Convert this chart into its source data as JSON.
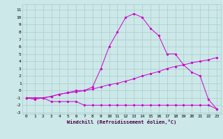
{
  "title": "",
  "xlabel": "Windchill (Refroidissement éolien,°C)",
  "bg_color": "#cce8e8",
  "grid_color": "#aacccc",
  "line_color": "#cc00cc",
  "xlim": [
    -0.5,
    23.5
  ],
  "ylim": [
    -3.2,
    11.8
  ],
  "xticks": [
    0,
    1,
    2,
    3,
    4,
    5,
    6,
    7,
    8,
    9,
    10,
    11,
    12,
    13,
    14,
    15,
    16,
    17,
    18,
    19,
    20,
    21,
    22,
    23
  ],
  "yticks": [
    -3,
    -2,
    -1,
    0,
    1,
    2,
    3,
    4,
    5,
    6,
    7,
    8,
    9,
    10,
    11
  ],
  "line1_x": [
    0,
    1,
    2,
    3,
    4,
    5,
    6,
    7,
    8,
    9,
    10,
    11,
    12,
    13,
    14,
    15,
    16,
    17,
    18,
    19,
    20,
    21,
    22,
    23
  ],
  "line1_y": [
    -1,
    -1.2,
    -1,
    -1.5,
    -1.5,
    -1.5,
    -1.5,
    -2,
    -2,
    -2,
    -2,
    -2,
    -2,
    -2,
    -2,
    -2,
    -2,
    -2,
    -2,
    -2,
    -2,
    -2,
    -2,
    -2.5
  ],
  "line2_x": [
    0,
    1,
    2,
    3,
    4,
    5,
    6,
    7,
    8,
    9,
    10,
    11,
    12,
    13,
    14,
    15,
    16,
    17,
    18,
    19,
    20,
    21,
    22,
    23
  ],
  "line2_y": [
    -1,
    -1,
    -1,
    -0.8,
    -0.5,
    -0.3,
    -0.2,
    0,
    0.2,
    0.5,
    0.8,
    1.0,
    1.3,
    1.6,
    2.0,
    2.3,
    2.6,
    3.0,
    3.3,
    3.5,
    3.8,
    4.0,
    4.2,
    4.5
  ],
  "line3_x": [
    0,
    1,
    2,
    3,
    4,
    5,
    6,
    7,
    8,
    9,
    10,
    11,
    12,
    13,
    14,
    15,
    16,
    17,
    18,
    19,
    20,
    21,
    22,
    23
  ],
  "line3_y": [
    -1,
    -1,
    -1,
    -0.8,
    -0.5,
    -0.3,
    0,
    0,
    0.5,
    3,
    6,
    8,
    10,
    10.5,
    10,
    8.5,
    7.5,
    5,
    5,
    3.5,
    2.5,
    2,
    -1.2,
    -2.5
  ]
}
